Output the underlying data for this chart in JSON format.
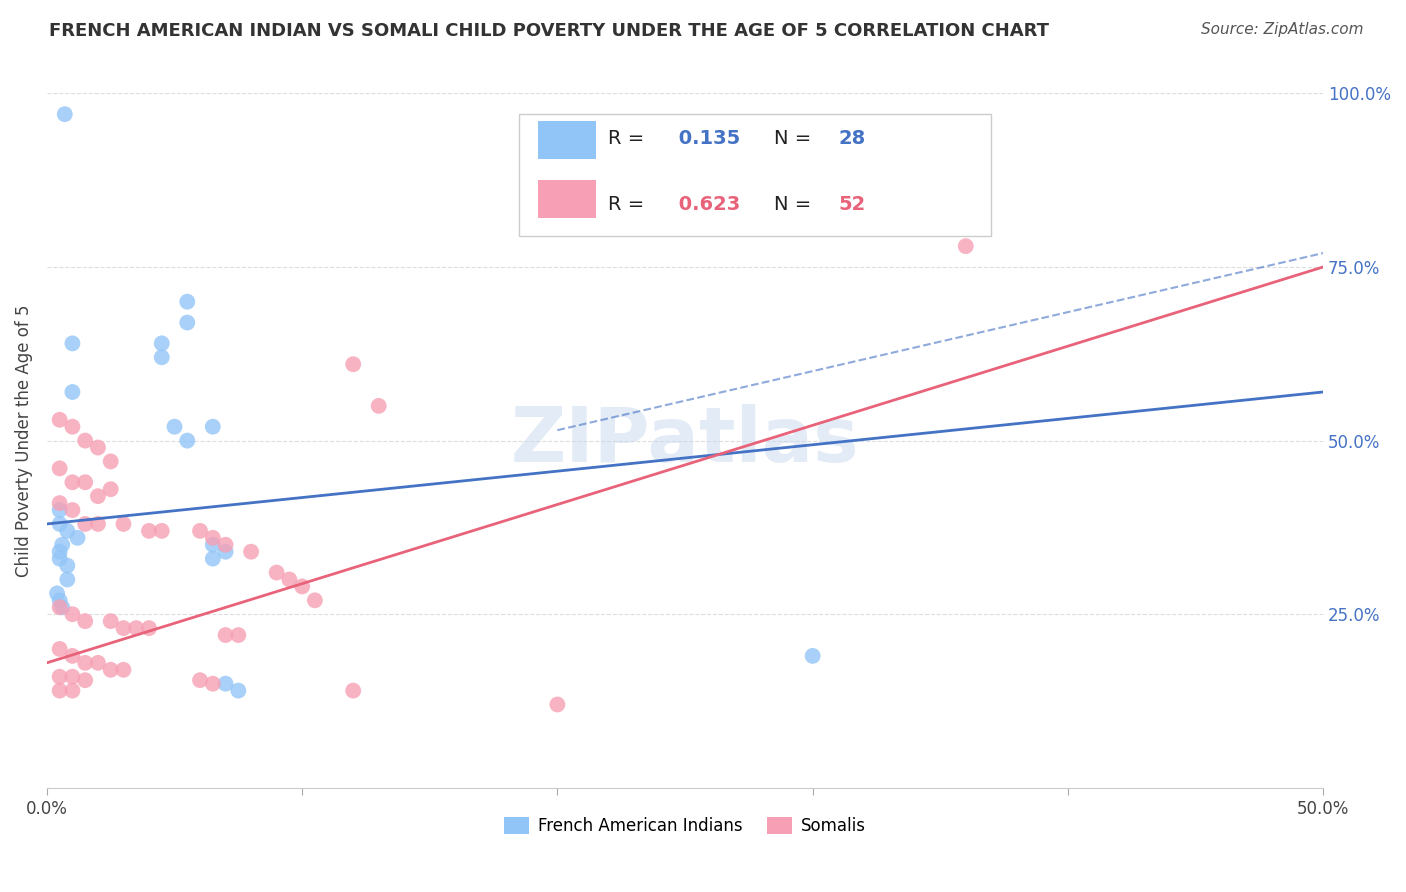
{
  "title": "FRENCH AMERICAN INDIAN VS SOMALI CHILD POVERTY UNDER THE AGE OF 5 CORRELATION CHART",
  "source": "Source: ZipAtlas.com",
  "ylabel": "Child Poverty Under the Age of 5",
  "xlim": [
    0.0,
    0.5
  ],
  "ylim": [
    0.0,
    1.0
  ],
  "yticks": [
    0.0,
    0.25,
    0.5,
    0.75,
    1.0
  ],
  "yticklabels": [
    "",
    "25.0%",
    "50.0%",
    "75.0%",
    "100.0%"
  ],
  "xtick_vals": [
    0.0,
    0.1,
    0.2,
    0.3,
    0.4,
    0.5
  ],
  "xtick_labels": [
    "0.0%",
    "",
    "",
    "",
    "",
    "50.0%"
  ],
  "blue_R": 0.135,
  "blue_N": 28,
  "pink_R": 0.623,
  "pink_N": 52,
  "blue_color": "#92C5F7",
  "pink_color": "#F7A0B5",
  "blue_line_color": "#4472C4",
  "pink_line_color": "#E8637A",
  "blue_scatter": [
    [
      0.007,
      0.97
    ],
    [
      0.01,
      0.64
    ],
    [
      0.055,
      0.7
    ],
    [
      0.055,
      0.67
    ],
    [
      0.045,
      0.64
    ],
    [
      0.045,
      0.62
    ],
    [
      0.01,
      0.57
    ],
    [
      0.05,
      0.52
    ],
    [
      0.055,
      0.5
    ],
    [
      0.065,
      0.52
    ],
    [
      0.005,
      0.4
    ],
    [
      0.005,
      0.38
    ],
    [
      0.008,
      0.37
    ],
    [
      0.012,
      0.36
    ],
    [
      0.006,
      0.35
    ],
    [
      0.005,
      0.34
    ],
    [
      0.005,
      0.33
    ],
    [
      0.008,
      0.32
    ],
    [
      0.008,
      0.3
    ],
    [
      0.004,
      0.28
    ],
    [
      0.005,
      0.27
    ],
    [
      0.006,
      0.26
    ],
    [
      0.065,
      0.35
    ],
    [
      0.065,
      0.33
    ],
    [
      0.07,
      0.34
    ],
    [
      0.3,
      0.19
    ],
    [
      0.07,
      0.15
    ],
    [
      0.075,
      0.14
    ]
  ],
  "pink_scatter": [
    [
      0.005,
      0.53
    ],
    [
      0.01,
      0.52
    ],
    [
      0.015,
      0.5
    ],
    [
      0.02,
      0.49
    ],
    [
      0.025,
      0.47
    ],
    [
      0.005,
      0.46
    ],
    [
      0.01,
      0.44
    ],
    [
      0.015,
      0.44
    ],
    [
      0.025,
      0.43
    ],
    [
      0.02,
      0.42
    ],
    [
      0.005,
      0.41
    ],
    [
      0.01,
      0.4
    ],
    [
      0.015,
      0.38
    ],
    [
      0.02,
      0.38
    ],
    [
      0.03,
      0.38
    ],
    [
      0.04,
      0.37
    ],
    [
      0.045,
      0.37
    ],
    [
      0.06,
      0.37
    ],
    [
      0.065,
      0.36
    ],
    [
      0.07,
      0.35
    ],
    [
      0.08,
      0.34
    ],
    [
      0.12,
      0.61
    ],
    [
      0.13,
      0.55
    ],
    [
      0.09,
      0.31
    ],
    [
      0.095,
      0.3
    ],
    [
      0.1,
      0.29
    ],
    [
      0.105,
      0.27
    ],
    [
      0.005,
      0.26
    ],
    [
      0.01,
      0.25
    ],
    [
      0.015,
      0.24
    ],
    [
      0.025,
      0.24
    ],
    [
      0.03,
      0.23
    ],
    [
      0.035,
      0.23
    ],
    [
      0.04,
      0.23
    ],
    [
      0.07,
      0.22
    ],
    [
      0.075,
      0.22
    ],
    [
      0.005,
      0.2
    ],
    [
      0.01,
      0.19
    ],
    [
      0.015,
      0.18
    ],
    [
      0.02,
      0.18
    ],
    [
      0.025,
      0.17
    ],
    [
      0.03,
      0.17
    ],
    [
      0.005,
      0.16
    ],
    [
      0.01,
      0.16
    ],
    [
      0.015,
      0.155
    ],
    [
      0.06,
      0.155
    ],
    [
      0.065,
      0.15
    ],
    [
      0.005,
      0.14
    ],
    [
      0.01,
      0.14
    ],
    [
      0.12,
      0.14
    ],
    [
      0.2,
      0.12
    ],
    [
      0.36,
      0.78
    ]
  ],
  "blue_line": {
    "x0": 0.0,
    "y0": 0.38,
    "x1": 0.5,
    "y1": 0.57
  },
  "pink_line": {
    "x0": 0.0,
    "y0": 0.18,
    "x1": 0.5,
    "y1": 0.75
  },
  "blue_dash_line": {
    "x0": 0.2,
    "y0": 0.515,
    "x1": 0.5,
    "y1": 0.77
  },
  "watermark": "ZIPatlas",
  "background_color": "#FFFFFF",
  "grid_color": "#DDDDDD"
}
